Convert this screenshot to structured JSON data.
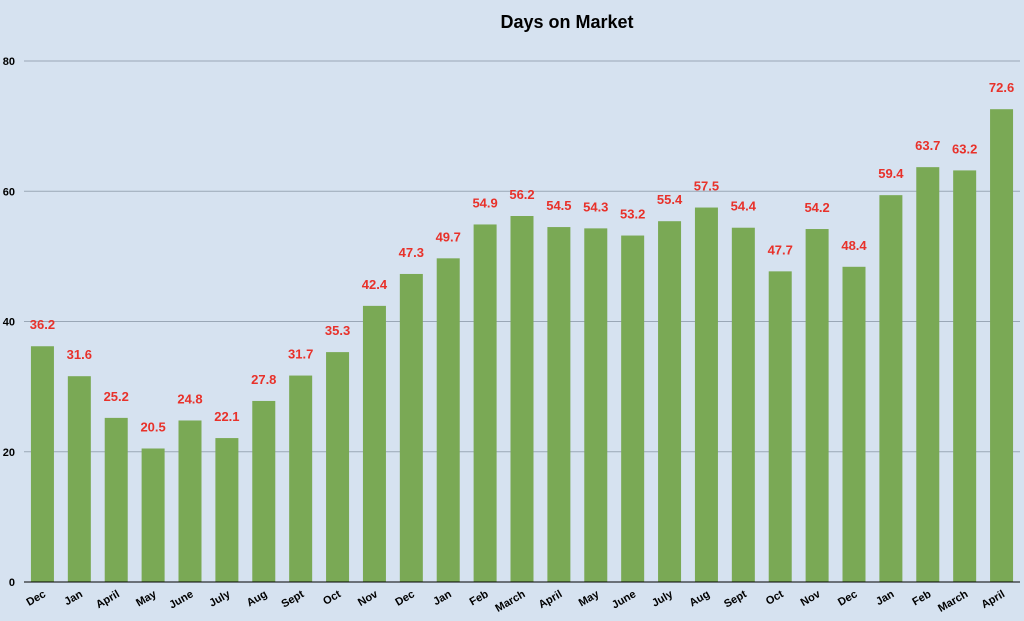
{
  "chart_data": {
    "type": "bar",
    "title": "Days on Market",
    "xlabel": "",
    "ylabel": "",
    "ylim": [
      0,
      80
    ],
    "yticks": [
      0,
      20,
      40,
      60,
      80
    ],
    "grid": true,
    "legend": "none",
    "bar_color": "#7aa955",
    "label_color": "#e8312a",
    "categories": [
      "Dec",
      "Jan",
      "April",
      "May",
      "June",
      "July",
      "Aug",
      "Sept",
      "Oct",
      "Nov",
      "Dec",
      "Jan",
      "Feb",
      "March",
      "April",
      "May",
      "June",
      "July",
      "Aug",
      "Sept",
      "Oct",
      "Nov",
      "Dec",
      "Jan",
      "Feb",
      "March",
      "April"
    ],
    "values": [
      36.2,
      31.6,
      25.2,
      20.5,
      24.8,
      22.1,
      27.8,
      31.7,
      35.3,
      42.4,
      47.3,
      49.7,
      54.9,
      56.2,
      54.5,
      54.3,
      53.2,
      55.4,
      57.5,
      54.4,
      47.7,
      54.2,
      48.4,
      59.4,
      63.7,
      63.2,
      72.6
    ]
  }
}
